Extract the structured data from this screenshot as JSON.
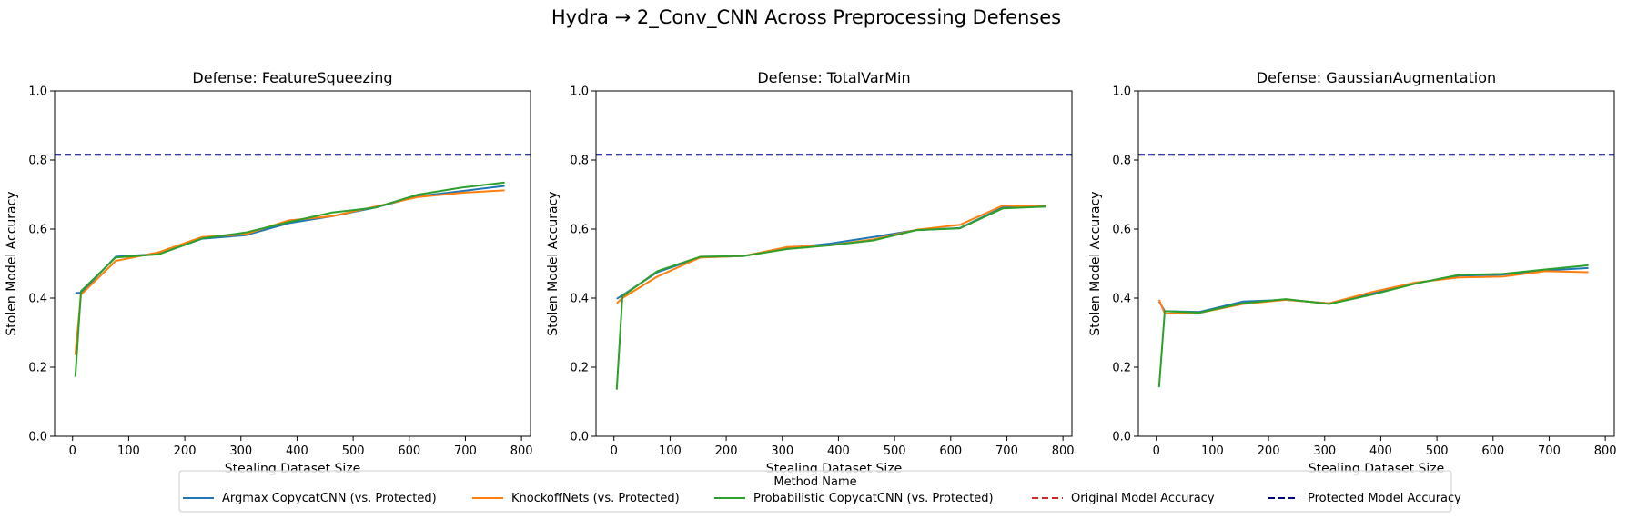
{
  "figure_title": "Hydra → 2_Conv_CNN Across Preprocessing Defenses",
  "legend": {
    "title": "Method Name",
    "entries": [
      {
        "label": "Argmax CopycatCNN (vs. Protected)",
        "color": "#1f77b4",
        "dashed": false
      },
      {
        "label": "KnockoffNets (vs. Protected)",
        "color": "#ff7f0e",
        "dashed": false
      },
      {
        "label": "Probabilistic CopycatCNN (vs. Protected)",
        "color": "#2ca02c",
        "dashed": false
      },
      {
        "label": "Original Model Accuracy",
        "color": "#d62728",
        "dashed": true
      },
      {
        "label": "Protected Model Accuracy",
        "color": "#00008b",
        "dashed": true
      }
    ]
  },
  "chart_data": [
    {
      "type": "line",
      "title": "Defense: FeatureSqueezing",
      "xlabel": "Stealing Dataset Size",
      "ylabel": "Stolen Model Accuracy",
      "xlim": [
        -32,
        816
      ],
      "ylim": [
        0.0,
        1.0
      ],
      "xticks": [
        0,
        100,
        200,
        300,
        400,
        500,
        600,
        700,
        800
      ],
      "yticks": [
        0.0,
        0.2,
        0.4,
        0.6,
        0.8,
        1.0
      ],
      "protected_accuracy": 0.815,
      "series": [
        {
          "name": "Argmax CopycatCNN (vs. Protected)",
          "color": "#1f77b4",
          "x": [
            5,
            15,
            77,
            154,
            231,
            308,
            385,
            462,
            539,
            616,
            693,
            770
          ],
          "y": [
            0.415,
            0.415,
            0.52,
            0.528,
            0.572,
            0.582,
            0.617,
            0.637,
            0.662,
            0.695,
            0.71,
            0.725
          ]
        },
        {
          "name": "KnockoffNets (vs. Protected)",
          "color": "#ff7f0e",
          "x": [
            5,
            15,
            77,
            154,
            231,
            308,
            385,
            462,
            539,
            616,
            693,
            770
          ],
          "y": [
            0.235,
            0.41,
            0.508,
            0.533,
            0.577,
            0.585,
            0.625,
            0.637,
            0.665,
            0.693,
            0.705,
            0.712
          ]
        },
        {
          "name": "Probabilistic CopycatCNN (vs. Protected)",
          "color": "#2ca02c",
          "x": [
            5,
            15,
            77,
            154,
            231,
            308,
            385,
            462,
            539,
            616,
            693,
            770
          ],
          "y": [
            0.172,
            0.42,
            0.518,
            0.527,
            0.573,
            0.59,
            0.62,
            0.648,
            0.662,
            0.7,
            0.72,
            0.735
          ]
        }
      ]
    },
    {
      "type": "line",
      "title": "Defense: TotalVarMin",
      "xlabel": "Stealing Dataset Size",
      "ylabel": "Stolen Model Accuracy",
      "xlim": [
        -32,
        816
      ],
      "ylim": [
        0.0,
        1.0
      ],
      "xticks": [
        0,
        100,
        200,
        300,
        400,
        500,
        600,
        700,
        800
      ],
      "yticks": [
        0.0,
        0.2,
        0.4,
        0.6,
        0.8,
        1.0
      ],
      "protected_accuracy": 0.815,
      "series": [
        {
          "name": "Argmax CopycatCNN (vs. Protected)",
          "color": "#1f77b4",
          "x": [
            5,
            15,
            77,
            154,
            231,
            308,
            385,
            462,
            539,
            616,
            693,
            770
          ],
          "y": [
            0.398,
            0.408,
            0.475,
            0.518,
            0.522,
            0.545,
            0.558,
            0.577,
            0.597,
            0.603,
            0.663,
            0.667
          ]
        },
        {
          "name": "KnockoffNets (vs. Protected)",
          "color": "#ff7f0e",
          "x": [
            5,
            15,
            77,
            154,
            231,
            308,
            385,
            462,
            539,
            616,
            693,
            770
          ],
          "y": [
            0.385,
            0.4,
            0.462,
            0.518,
            0.522,
            0.548,
            0.553,
            0.57,
            0.598,
            0.612,
            0.668,
            0.665
          ]
        },
        {
          "name": "Probabilistic CopycatCNN (vs. Protected)",
          "color": "#2ca02c",
          "x": [
            5,
            15,
            77,
            154,
            231,
            308,
            385,
            462,
            539,
            616,
            693,
            770
          ],
          "y": [
            0.135,
            0.405,
            0.478,
            0.52,
            0.522,
            0.542,
            0.553,
            0.567,
            0.597,
            0.602,
            0.66,
            0.665
          ]
        }
      ]
    },
    {
      "type": "line",
      "title": "Defense: GaussianAugmentation",
      "xlabel": "Stealing Dataset Size",
      "ylabel": "Stolen Model Accuracy",
      "xlim": [
        -32,
        816
      ],
      "ylim": [
        0.0,
        1.0
      ],
      "xticks": [
        0,
        100,
        200,
        300,
        400,
        500,
        600,
        700,
        800
      ],
      "yticks": [
        0.0,
        0.2,
        0.4,
        0.6,
        0.8,
        1.0
      ],
      "protected_accuracy": 0.815,
      "series": [
        {
          "name": "Argmax CopycatCNN (vs. Protected)",
          "color": "#1f77b4",
          "x": [
            5,
            15,
            77,
            154,
            231,
            308,
            385,
            462,
            539,
            616,
            693,
            770
          ],
          "y": [
            0.39,
            0.362,
            0.36,
            0.39,
            0.395,
            0.385,
            0.413,
            0.443,
            0.465,
            0.468,
            0.48,
            0.487
          ]
        },
        {
          "name": "KnockoffNets (vs. Protected)",
          "color": "#ff7f0e",
          "x": [
            5,
            15,
            77,
            154,
            231,
            308,
            385,
            462,
            539,
            616,
            693,
            770
          ],
          "y": [
            0.395,
            0.355,
            0.357,
            0.383,
            0.395,
            0.385,
            0.418,
            0.445,
            0.46,
            0.462,
            0.478,
            0.475
          ]
        },
        {
          "name": "Probabilistic CopycatCNN (vs. Protected)",
          "color": "#2ca02c",
          "x": [
            5,
            15,
            77,
            154,
            231,
            308,
            385,
            462,
            539,
            616,
            693,
            770
          ],
          "y": [
            0.142,
            0.362,
            0.358,
            0.385,
            0.397,
            0.383,
            0.41,
            0.442,
            0.467,
            0.47,
            0.483,
            0.495
          ]
        }
      ]
    }
  ]
}
